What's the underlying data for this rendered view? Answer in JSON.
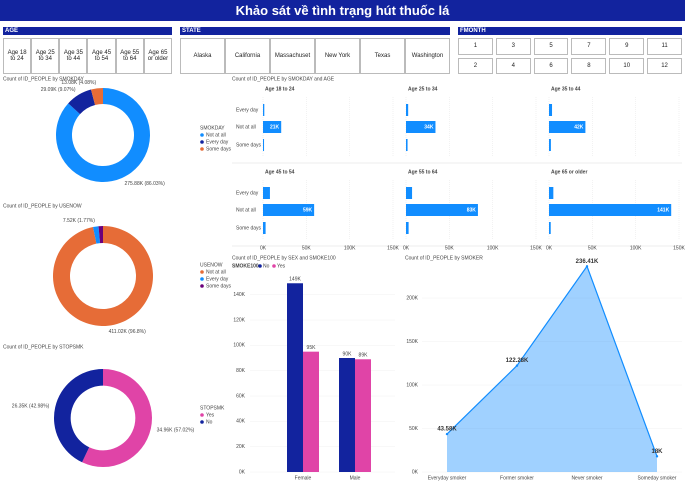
{
  "title": "Khảo sát về tình trạng hút thuốc lá",
  "slicers": [
    {
      "title": "AGE",
      "items": [
        "Age 18 to 24",
        "Age 25 to 34",
        "Age 35 to 44",
        "Age 45 to 54",
        "Age 55 to 64",
        "Age 65 or older"
      ]
    },
    {
      "title": "STATE",
      "items": [
        "Alaska",
        "California",
        "Massachuset",
        "New York",
        "Texas",
        "Washington"
      ]
    },
    {
      "title": "FMONTH",
      "items": [
        "1",
        "2",
        "3",
        "4",
        "5",
        "6",
        "7",
        "8",
        "9",
        "10",
        "11",
        "12"
      ]
    }
  ],
  "chart_data": [
    {
      "type": "donut",
      "title": "Count of ID_PEOPLE by SMOKDAY",
      "legend_title": "SMOKDAY",
      "categories": [
        "Not at all",
        "Every day",
        "Some days"
      ],
      "colors": [
        "#118dff",
        "#12239e",
        "#e66c37"
      ],
      "values": [
        275.88,
        29.09,
        13.08
      ],
      "value_labels": [
        "275.88K (86.03%)",
        "29.09K (9.07%)",
        "13.08K (4.08%)"
      ]
    },
    {
      "type": "donut",
      "title": "Count of ID_PEOPLE by USENOW",
      "legend_title": "USENOW",
      "categories": [
        "Not at all",
        "Every day",
        "Some days"
      ],
      "colors": [
        "#e66c37",
        "#118dff",
        "#6b007b"
      ],
      "values": [
        411.02,
        7.52,
        6.07
      ],
      "value_labels": [
        "411.02K (96.8%)",
        "7.52K (1.77%)",
        null
      ]
    },
    {
      "type": "donut",
      "title": "Count of ID_PEOPLE by STOPSMK",
      "legend_title": "STOPSMK",
      "categories": [
        "Yes",
        "No"
      ],
      "colors": [
        "#e044a7",
        "#12239e"
      ],
      "values": [
        34.96,
        26.35
      ],
      "value_labels": [
        "34.96K (57.02%)",
        "26.35K (42.98%)"
      ]
    },
    {
      "type": "hbar-multiples",
      "title": "Count of ID_PEOPLE by SMOKDAY and AGE",
      "color": "#118dff",
      "categories": [
        "Every day",
        "Not at all",
        "Some days"
      ],
      "panels": [
        {
          "name": "Age 18 to 24",
          "values": [
            1.5,
            21,
            1.2
          ],
          "value_labels": [
            null,
            "21K",
            null
          ]
        },
        {
          "name": "Age 25 to 34",
          "values": [
            2.5,
            34,
            1.8
          ],
          "value_labels": [
            null,
            "34K",
            null
          ]
        },
        {
          "name": "Age 35 to 44",
          "values": [
            3.5,
            42,
            2.2
          ],
          "value_labels": [
            null,
            "42K",
            null
          ]
        },
        {
          "name": "Age 45 to 54",
          "values": [
            8,
            59,
            3
          ],
          "value_labels": [
            null,
            "59K",
            null
          ]
        },
        {
          "name": "Age 55 to 64",
          "values": [
            7,
            83,
            3
          ],
          "value_labels": [
            null,
            "83K",
            null
          ]
        },
        {
          "name": "Age 65 or older",
          "values": [
            5,
            141,
            2
          ],
          "value_labels": [
            null,
            "141K",
            null
          ]
        }
      ],
      "xlim": [
        0,
        150
      ],
      "xticks": [
        {
          "value": 0,
          "label": "0K"
        },
        {
          "value": 50,
          "label": "50K"
        },
        {
          "value": 100,
          "label": "100K"
        },
        {
          "value": 150,
          "label": "150K"
        }
      ]
    },
    {
      "type": "column",
      "title": "Count of ID_PEOPLE by SEX and SMOKE100",
      "legend_title": "SMOKE100",
      "categories": [
        "Female",
        "Male"
      ],
      "series": [
        {
          "name": "No",
          "color": "#12239e",
          "values": [
            149,
            90
          ],
          "value_labels": [
            "149K",
            "90K"
          ]
        },
        {
          "name": "Yes",
          "color": "#e044a7",
          "values": [
            95,
            89
          ],
          "value_labels": [
            "95K",
            "89K"
          ]
        }
      ],
      "ylim": [
        0,
        150
      ],
      "yticks": [
        {
          "value": 0,
          "label": "0K"
        },
        {
          "value": 20,
          "label": "20K"
        },
        {
          "value": 40,
          "label": "40K"
        },
        {
          "value": 60,
          "label": "60K"
        },
        {
          "value": 80,
          "label": "80K"
        },
        {
          "value": 100,
          "label": "100K"
        },
        {
          "value": 120,
          "label": "120K"
        },
        {
          "value": 140,
          "label": "140K"
        }
      ]
    },
    {
      "type": "area",
      "title": "Count of ID_PEOPLE by SMOKER",
      "color": "#118dff",
      "categories": [
        "Everyday smoker",
        "Former smoker",
        "Never smoker",
        "Someday smoker"
      ],
      "values": [
        43.58,
        122.28,
        236.41,
        18
      ],
      "value_labels": [
        "43.58K",
        "122.28K",
        "236.41K",
        "18K"
      ],
      "ylim": [
        0,
        250
      ],
      "yticks": [
        {
          "value": 0,
          "label": "0K"
        },
        {
          "value": 50,
          "label": "50K"
        },
        {
          "value": 100,
          "label": "100K"
        },
        {
          "value": 150,
          "label": "150K"
        },
        {
          "value": 200,
          "label": "200K"
        }
      ]
    }
  ]
}
